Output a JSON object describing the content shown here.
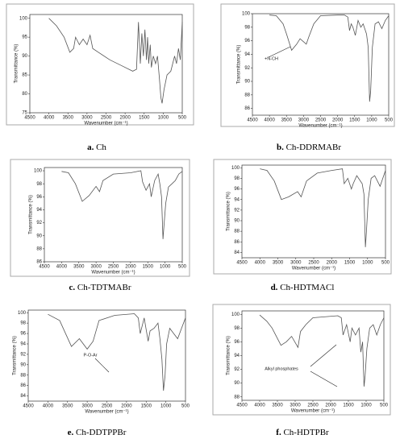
{
  "chart_data": [
    {
      "type": "line",
      "panel_label": "a.",
      "title": "Ch",
      "x_label": "Wavenumber (cm⁻¹)",
      "y_label": "Transmittance (%)",
      "frame": true,
      "color": "#555555",
      "xlim": [
        4500,
        500
      ],
      "xticks": [
        4500,
        4000,
        3500,
        3000,
        2500,
        2000,
        1500,
        1000,
        500
      ],
      "ylim": [
        75,
        101
      ],
      "yticks": [
        75,
        80,
        85,
        90,
        95,
        100
      ],
      "x": [
        4000,
        3800,
        3600,
        3450,
        3350,
        3300,
        3200,
        3100,
        3000,
        2920,
        2850,
        2700,
        2400,
        2100,
        1800,
        1700,
        1650,
        1600,
        1560,
        1520,
        1480,
        1440,
        1410,
        1380,
        1340,
        1310,
        1260,
        1200,
        1150,
        1100,
        1060,
        1030,
        980,
        900,
        800,
        700,
        650,
        600,
        550,
        500
      ],
      "values": [
        100,
        98,
        95,
        91,
        92,
        95,
        93,
        94.5,
        93,
        95.5,
        92,
        91,
        89,
        87.5,
        86,
        86.5,
        99,
        88,
        96,
        90,
        97,
        89,
        95,
        88,
        93,
        87,
        90,
        88,
        90,
        84,
        79,
        77.5,
        81,
        85,
        86,
        90,
        88,
        92,
        89,
        99
      ]
    },
    {
      "type": "line",
      "panel_label": "b.",
      "title": "Ch-DDRMABr",
      "x_label": "Wavenumber (cm⁻¹)",
      "y_label": "Transmittance (%)",
      "frame": true,
      "color": "#555555",
      "annotations": [
        "+N-CH"
      ],
      "xlim": [
        4500,
        500
      ],
      "xticks": [
        4500,
        4000,
        3500,
        3000,
        2500,
        2000,
        1500,
        1000,
        500
      ],
      "ylim": [
        85,
        100
      ],
      "yticks": [
        86,
        88,
        90,
        92,
        94,
        96,
        98,
        100
      ],
      "x": [
        4000,
        3800,
        3600,
        3500,
        3350,
        3200,
        3100,
        2920,
        2850,
        2700,
        2500,
        2000,
        1800,
        1700,
        1650,
        1600,
        1550,
        1480,
        1400,
        1320,
        1250,
        1150,
        1100,
        1060,
        1030,
        980,
        900,
        800,
        700,
        600,
        500
      ],
      "values": [
        99.8,
        99.7,
        98.5,
        97,
        94.6,
        95.5,
        96.3,
        95.5,
        96.5,
        98.5,
        99.7,
        99.8,
        99.8,
        99.5,
        97.5,
        98.5,
        98,
        96.8,
        99,
        98,
        98.5,
        97,
        95,
        87,
        88.5,
        95,
        98.5,
        98.8,
        97.8,
        99,
        99.7
      ]
    },
    {
      "type": "line",
      "panel_label": "c.",
      "title": "Ch-TDTMABr",
      "x_label": "Wavenumber (cm⁻¹)",
      "y_label": "Transmittance (%)",
      "frame": true,
      "color": "#555555",
      "xlim": [
        4500,
        500
      ],
      "xticks": [
        4500,
        4000,
        3500,
        3000,
        2500,
        2000,
        1500,
        1000,
        500
      ],
      "ylim": [
        86,
        100.5
      ],
      "yticks": [
        86,
        88,
        90,
        92,
        94,
        96,
        98,
        100
      ],
      "x": [
        4000,
        3800,
        3600,
        3400,
        3200,
        3000,
        2900,
        2800,
        2500,
        2000,
        1700,
        1650,
        1550,
        1450,
        1400,
        1300,
        1200,
        1150,
        1100,
        1060,
        1030,
        980,
        900,
        800,
        700,
        600,
        500
      ],
      "values": [
        99.9,
        99.7,
        98,
        95.3,
        96.2,
        97.6,
        96.8,
        98.5,
        99.5,
        99.7,
        100,
        98.3,
        97,
        98,
        96,
        98.5,
        99.5,
        98,
        96,
        89.5,
        91.5,
        95,
        97.5,
        98,
        98.5,
        99.5,
        99.9
      ]
    },
    {
      "type": "line",
      "panel_label": "d.",
      "title": "Ch-HDTMACl",
      "x_label": "Wavenumber (cm⁻¹)",
      "y_label": "Transmittance (%)",
      "frame": true,
      "color": "#555555",
      "xlim": [
        4500,
        500
      ],
      "xticks": [
        4500,
        4000,
        3500,
        3000,
        2500,
        2000,
        1500,
        1000,
        500
      ],
      "ylim": [
        83,
        100.5
      ],
      "yticks": [
        84,
        86,
        88,
        90,
        92,
        94,
        96,
        98,
        100
      ],
      "x": [
        4000,
        3800,
        3600,
        3400,
        3200,
        2950,
        2850,
        2700,
        2400,
        2000,
        1700,
        1650,
        1550,
        1450,
        1400,
        1300,
        1150,
        1100,
        1060,
        1030,
        980,
        900,
        800,
        650,
        500
      ],
      "values": [
        99.8,
        99.5,
        97.5,
        94,
        94.5,
        95.5,
        94.5,
        97.5,
        99,
        99.5,
        99.8,
        97,
        98,
        96,
        97,
        98.5,
        97,
        95,
        85,
        88,
        94,
        98,
        98.5,
        96.5,
        99.5
      ]
    },
    {
      "type": "line",
      "panel_label": "e.",
      "title": "Ch-DDTPPBr",
      "x_label": "Wavenumber (cm⁻¹)",
      "y_label": "Transmittance (%)",
      "frame": false,
      "color": "#555555",
      "annotations": [
        "P-O-Ar"
      ],
      "xlim": [
        4500,
        500
      ],
      "xticks": [
        4500,
        4000,
        3500,
        3000,
        2500,
        2000,
        1500,
        1000,
        500
      ],
      "ylim": [
        83,
        100.5
      ],
      "yticks": [
        84,
        86,
        88,
        90,
        92,
        94,
        96,
        98,
        100
      ],
      "x": [
        4000,
        3700,
        3550,
        3400,
        3200,
        3000,
        2850,
        2700,
        2300,
        1800,
        1700,
        1650,
        1550,
        1450,
        1400,
        1300,
        1200,
        1150,
        1100,
        1060,
        1020,
        980,
        900,
        800,
        700,
        600,
        500
      ],
      "values": [
        99.7,
        98.5,
        96,
        93.5,
        95,
        93,
        94.5,
        98.5,
        99.5,
        99.8,
        99,
        96,
        99,
        94.5,
        96.5,
        97,
        98,
        95,
        91,
        85,
        88,
        94,
        97,
        96,
        95,
        97,
        99
      ]
    },
    {
      "type": "line",
      "panel_label": "f.",
      "title": "Ch-HDTPBr",
      "x_label": "Wavenumber (cm⁻¹)",
      "y_label": "Transmittance (%)",
      "frame": true,
      "color": "#555555",
      "annotations": [
        "Alkyl phosphates"
      ],
      "xlim": [
        4500,
        500
      ],
      "xticks": [
        4500,
        4000,
        3500,
        3000,
        2500,
        2000,
        1500,
        1000,
        500
      ],
      "ylim": [
        87.5,
        100.5
      ],
      "yticks": [
        88,
        90,
        92,
        94,
        96,
        98,
        100
      ],
      "x": [
        4000,
        3800,
        3650,
        3500,
        3400,
        3250,
        3100,
        2920,
        2850,
        2700,
        2500,
        1800,
        1700,
        1650,
        1550,
        1450,
        1400,
        1300,
        1200,
        1150,
        1100,
        1060,
        1030,
        980,
        900,
        800,
        700,
        600,
        500
      ],
      "values": [
        99.9,
        99,
        98,
        96.5,
        95.5,
        96,
        96.8,
        95.2,
        97.5,
        98.5,
        99.5,
        99.8,
        99.5,
        97,
        98.5,
        96,
        98,
        97,
        98,
        94.5,
        96,
        89.5,
        91,
        95,
        98,
        98.5,
        97,
        98.5,
        99.5
      ]
    }
  ]
}
